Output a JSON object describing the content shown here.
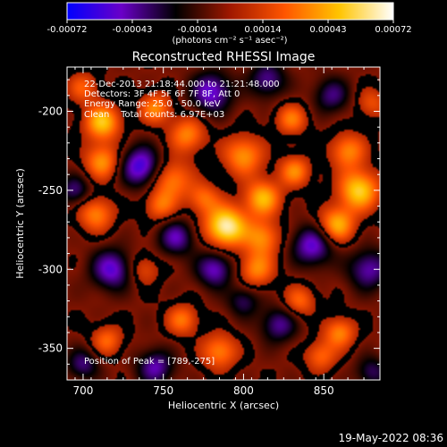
{
  "colorbar": {
    "ticks": [
      "-0.00072",
      "-0.00043",
      "-0.00014",
      "0.00014",
      "0.00043",
      "0.00072"
    ],
    "unit_label": "(photons cm⁻² s⁻¹ asec⁻²)",
    "stops": [
      "#0000ff",
      "#6a00c8",
      "#000000",
      "#a01800",
      "#ff5500",
      "#ffc400",
      "#ffffff"
    ]
  },
  "chart_data": {
    "type": "heatmap",
    "title": "Reconstructed RHESSI Image",
    "xlabel": "Heliocentric X (arcsec)",
    "ylabel": "Heliocentric Y (arcsec)",
    "xlim": [
      690,
      885
    ],
    "ylim": [
      -370,
      -172
    ],
    "x_ticks": [
      700,
      750,
      800,
      850
    ],
    "y_ticks": [
      -200,
      -250,
      -300,
      -350
    ],
    "value_range": [
      -0.00072,
      0.00072
    ],
    "annotations": [
      "22-Dec-2013 21:18:44.000 to 21:21:48.000",
      "Detectors: 3F 4F 5F 6F 7F 8F, Att 0",
      "Energy Range: 25.0 - 50.0 keV",
      "Clean    Total counts: 6.97E+03"
    ],
    "peak_label": "Position of Peak = [789,-275]",
    "peak": [
      789,
      -275
    ],
    "blobs": [
      {
        "x": 789,
        "y": -273,
        "a": 1.0,
        "s": 9
      },
      {
        "x": 712,
        "y": -207,
        "a": 0.75,
        "s": 8
      },
      {
        "x": 712,
        "y": -232,
        "a": 0.6,
        "s": 8
      },
      {
        "x": 708,
        "y": -265,
        "a": 0.55,
        "s": 8
      },
      {
        "x": 745,
        "y": -198,
        "a": 0.55,
        "s": 7
      },
      {
        "x": 765,
        "y": -215,
        "a": 0.55,
        "s": 8
      },
      {
        "x": 755,
        "y": -243,
        "a": 0.55,
        "s": 9
      },
      {
        "x": 748,
        "y": -260,
        "a": 0.45,
        "s": 7
      },
      {
        "x": 775,
        "y": -255,
        "a": 0.45,
        "s": 7
      },
      {
        "x": 800,
        "y": -228,
        "a": 0.6,
        "s": 9
      },
      {
        "x": 812,
        "y": -255,
        "a": 0.7,
        "s": 8
      },
      {
        "x": 812,
        "y": -280,
        "a": 0.55,
        "s": 8
      },
      {
        "x": 808,
        "y": -300,
        "a": 0.55,
        "s": 8
      },
      {
        "x": 832,
        "y": -238,
        "a": 0.55,
        "s": 7
      },
      {
        "x": 830,
        "y": -205,
        "a": 0.5,
        "s": 7
      },
      {
        "x": 865,
        "y": -225,
        "a": 0.55,
        "s": 8
      },
      {
        "x": 872,
        "y": -250,
        "a": 0.8,
        "s": 9
      },
      {
        "x": 858,
        "y": -272,
        "a": 0.7,
        "s": 8
      },
      {
        "x": 860,
        "y": -340,
        "a": 0.55,
        "s": 7
      },
      {
        "x": 848,
        "y": -355,
        "a": 0.45,
        "s": 7
      },
      {
        "x": 785,
        "y": -352,
        "a": 0.55,
        "s": 8
      },
      {
        "x": 762,
        "y": -332,
        "a": 0.5,
        "s": 7
      },
      {
        "x": 715,
        "y": -345,
        "a": 0.45,
        "s": 7
      },
      {
        "x": 835,
        "y": -320,
        "a": 0.45,
        "s": 7
      },
      {
        "x": 738,
        "y": -300,
        "a": 0.35,
        "s": 7
      },
      {
        "x": 700,
        "y": -185,
        "a": 0.4,
        "s": 7
      },
      {
        "x": 880,
        "y": -195,
        "a": 0.35,
        "s": 7
      },
      {
        "x": 736,
        "y": -235,
        "a": -0.75,
        "s": 9
      },
      {
        "x": 718,
        "y": -300,
        "a": -0.65,
        "s": 9
      },
      {
        "x": 780,
        "y": -188,
        "a": -0.65,
        "s": 9
      },
      {
        "x": 782,
        "y": -300,
        "a": -0.6,
        "s": 8
      },
      {
        "x": 758,
        "y": -280,
        "a": -0.55,
        "s": 8
      },
      {
        "x": 843,
        "y": -285,
        "a": -0.65,
        "s": 9
      },
      {
        "x": 878,
        "y": -300,
        "a": -0.55,
        "s": 9
      },
      {
        "x": 822,
        "y": -335,
        "a": -0.5,
        "s": 8
      },
      {
        "x": 745,
        "y": -362,
        "a": -0.55,
        "s": 8
      },
      {
        "x": 815,
        "y": -180,
        "a": -0.5,
        "s": 8
      },
      {
        "x": 855,
        "y": -190,
        "a": -0.45,
        "s": 8
      },
      {
        "x": 700,
        "y": -360,
        "a": -0.45,
        "s": 7
      },
      {
        "x": 880,
        "y": -365,
        "a": -0.4,
        "s": 7
      },
      {
        "x": 695,
        "y": -250,
        "a": -0.45,
        "s": 7
      },
      {
        "x": 800,
        "y": -320,
        "a": -0.4,
        "s": 7
      }
    ]
  },
  "footer": {
    "timestamp": "19-May-2022 08:36"
  }
}
